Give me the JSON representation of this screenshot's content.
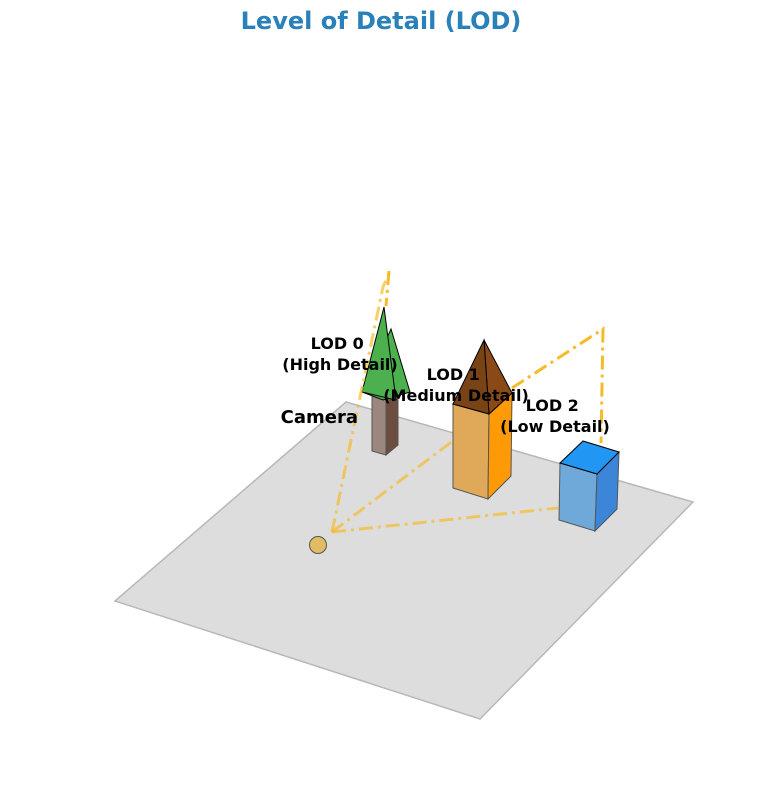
{
  "title": "Level of Detail (LOD)",
  "camera": {
    "label": "Camera"
  },
  "objects": [
    {
      "name": "LOD 0",
      "detail": "(High Detail)"
    },
    {
      "name": "LOD 1",
      "detail": "(Medium Detail)"
    },
    {
      "name": "LOD 2",
      "detail": "(Low Detail)"
    }
  ],
  "colors": {
    "title": "#2a80b9",
    "ground": "#dddddd",
    "ground_edge": "#b8b8b8",
    "sight_line": "#f6bb2d",
    "camera": "#e2bc64",
    "tree_foliage": "#4cb04f",
    "tree_trunk": "#9b877d",
    "tree_trunk_side": "#6d4d3f",
    "house_wall_front": "#e0a95a",
    "house_wall_top": "#ff9a07",
    "house_roof": "#7a4316",
    "house_roof_right": "#8a4a17",
    "cube_front": "#6fa9da",
    "cube_top": "#2196f3",
    "cube_side": "#3b86d8"
  }
}
